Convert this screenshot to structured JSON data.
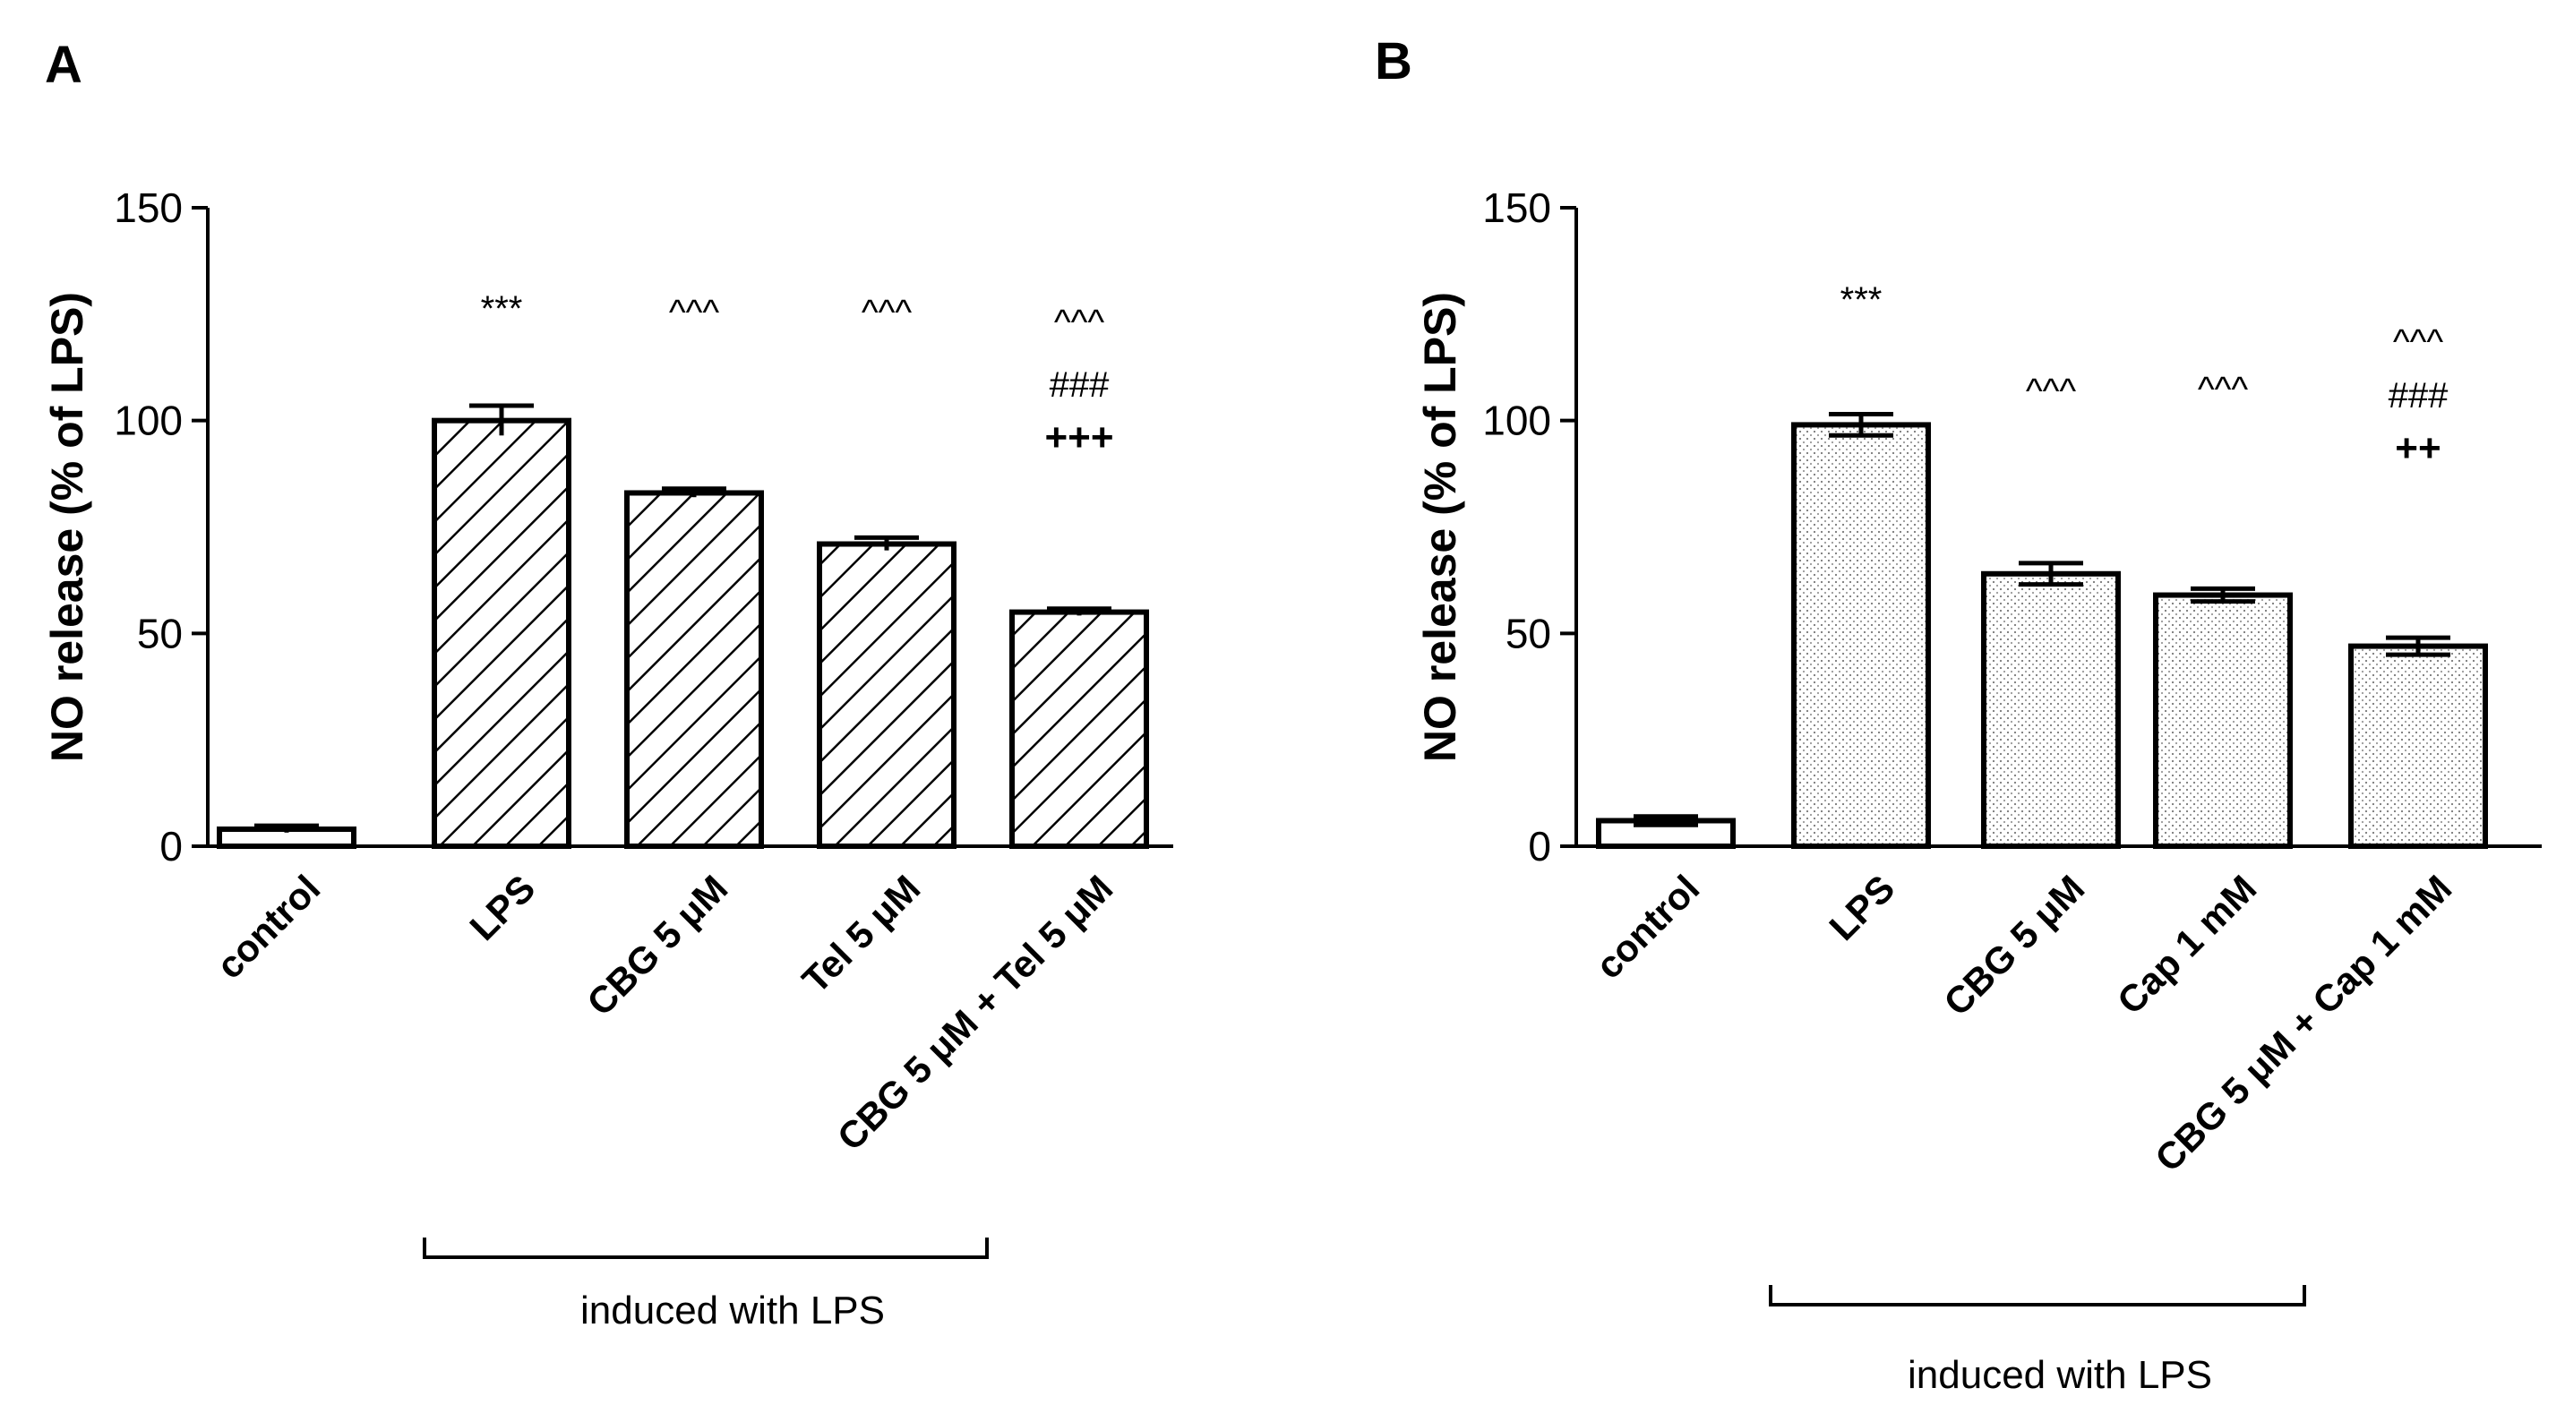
{
  "chart_data": [
    {
      "panel": "A",
      "type": "bar",
      "ylabel": "NO release (% of LPS)",
      "xlabel": "",
      "ylim": [
        0,
        150
      ],
      "yticks": [
        "0",
        "50",
        "100",
        "150"
      ],
      "categories": [
        "control",
        "LPS",
        "CBG 5 μM",
        "Tel 5 μM",
        "CBG 5 μM + Tel 5 μM"
      ],
      "values": [
        4,
        100,
        83,
        71,
        55
      ],
      "errors": [
        0.8,
        3.5,
        1.0,
        1.5,
        0.8
      ],
      "fills": [
        "none",
        "hatch",
        "hatch",
        "hatch",
        "hatch"
      ],
      "annotations": [
        {
          "bar": 1,
          "lines": [
            "***"
          ]
        },
        {
          "bar": 2,
          "lines": [
            "^^^"
          ]
        },
        {
          "bar": 3,
          "lines": [
            "^^^"
          ]
        },
        {
          "bar": 4,
          "lines": [
            "^^^",
            "###",
            "+++"
          ]
        }
      ],
      "bracket": {
        "from": 1,
        "to": 4,
        "label": "induced with LPS"
      }
    },
    {
      "panel": "B",
      "type": "bar",
      "ylabel": "NO release (% of LPS)",
      "xlabel": "",
      "ylim": [
        0,
        150
      ],
      "yticks": [
        "0",
        "50",
        "100",
        "150"
      ],
      "categories": [
        "control",
        "LPS",
        "CBG 5 μM",
        "Cap 1 mM",
        "CBG 5 μM + Cap 1 mM"
      ],
      "values": [
        6,
        99,
        64,
        59,
        47
      ],
      "errors": [
        1.0,
        2.5,
        2.5,
        1.5,
        2.0
      ],
      "fills": [
        "none",
        "dots",
        "dots",
        "dots",
        "dots"
      ],
      "annotations": [
        {
          "bar": 1,
          "lines": [
            "***"
          ]
        },
        {
          "bar": 2,
          "lines": [
            "^^^"
          ]
        },
        {
          "bar": 3,
          "lines": [
            "^^^"
          ]
        },
        {
          "bar": 4,
          "lines": [
            "^^^",
            "###",
            "++"
          ]
        }
      ],
      "bracket": {
        "from": 1,
        "to": 3,
        "label": "induced with LPS"
      }
    }
  ]
}
